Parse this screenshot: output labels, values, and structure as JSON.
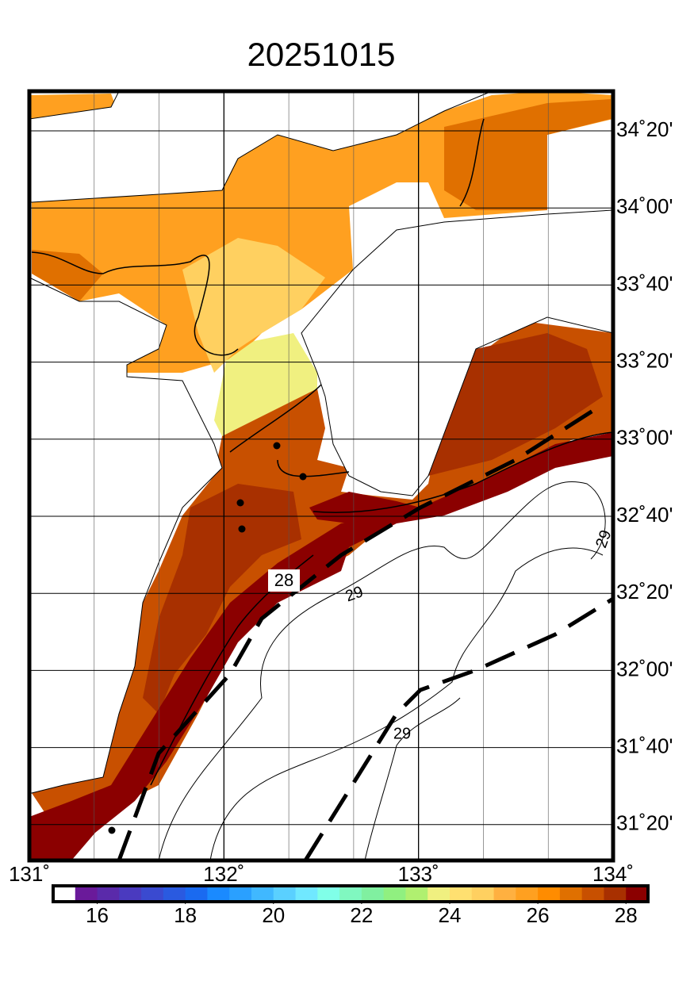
{
  "title": "20251015",
  "map": {
    "lat_labels": [
      "34˚20'",
      "34˚00'",
      "33˚40'",
      "33˚20'",
      "33˚00'",
      "32˚40'",
      "32˚20'",
      "32˚00'",
      "31˚40'",
      "31˚20'"
    ],
    "lon_labels": [
      "131˚",
      "132˚",
      "133˚",
      "134˚"
    ],
    "contour_labels": [
      "28",
      "29",
      "29",
      "29"
    ]
  },
  "colorbar": {
    "range": [
      15,
      28.5
    ],
    "ticks": [
      16,
      18,
      20,
      22,
      24,
      26,
      28
    ],
    "colors": [
      "#ffffff",
      "#6a1a9a",
      "#5a2aaa",
      "#4a3abf",
      "#3a4ad0",
      "#2a5ae0",
      "#1a6af0",
      "#1a8aff",
      "#2aa0ff",
      "#40b8ff",
      "#5ad0ff",
      "#70e8ff",
      "#80ffe8",
      "#80f8c0",
      "#80f0a0",
      "#90f080",
      "#b0f070",
      "#f0f080",
      "#ffe070",
      "#ffd060",
      "#ffb040",
      "#ffa020",
      "#ff8c00",
      "#e07000",
      "#c85000",
      "#a83000",
      "#8b0000"
    ]
  }
}
